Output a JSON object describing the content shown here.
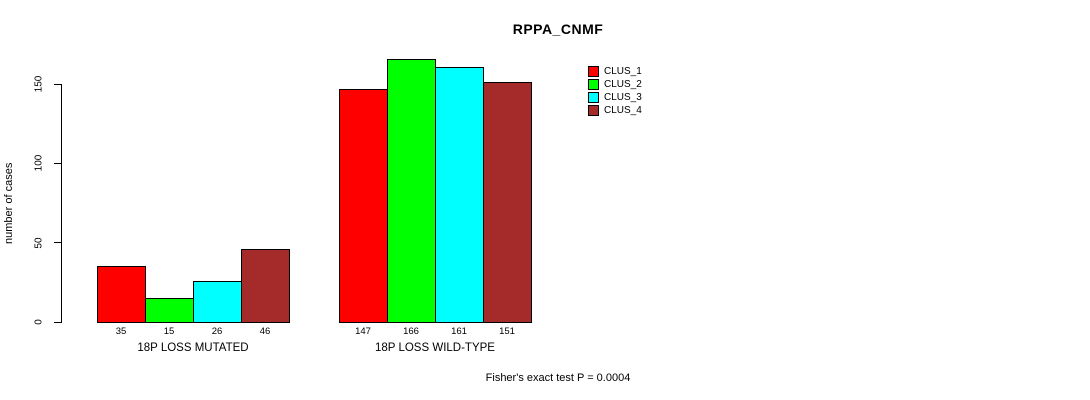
{
  "chart_data": {
    "type": "bar",
    "title": "RPPA_CNMF",
    "ylabel": "number of cases",
    "xlabel": "",
    "ylim": [
      0,
      168
    ],
    "yticks": [
      0,
      50,
      100,
      150
    ],
    "grid": false,
    "legend_position": "top-right",
    "categories": [
      "18P LOSS MUTATED",
      "18P LOSS WILD-TYPE"
    ],
    "series": [
      {
        "name": "CLUS_1",
        "color": "#ff0000",
        "values": [
          35,
          147
        ]
      },
      {
        "name": "CLUS_2",
        "color": "#00ff00",
        "values": [
          15,
          166
        ]
      },
      {
        "name": "CLUS_3",
        "color": "#00ffff",
        "values": [
          26,
          161
        ]
      },
      {
        "name": "CLUS_4",
        "color": "#a52a2a",
        "values": [
          46,
          151
        ]
      }
    ],
    "bar_value_labels": [
      [
        "35",
        "15",
        "26",
        "46"
      ],
      [
        "147",
        "166",
        "161",
        "151"
      ]
    ],
    "annotation": "Fisher's exact test P = 0.0004"
  },
  "colors": {
    "axis": "#000000",
    "background": "#ffffff",
    "text": "#000000"
  }
}
